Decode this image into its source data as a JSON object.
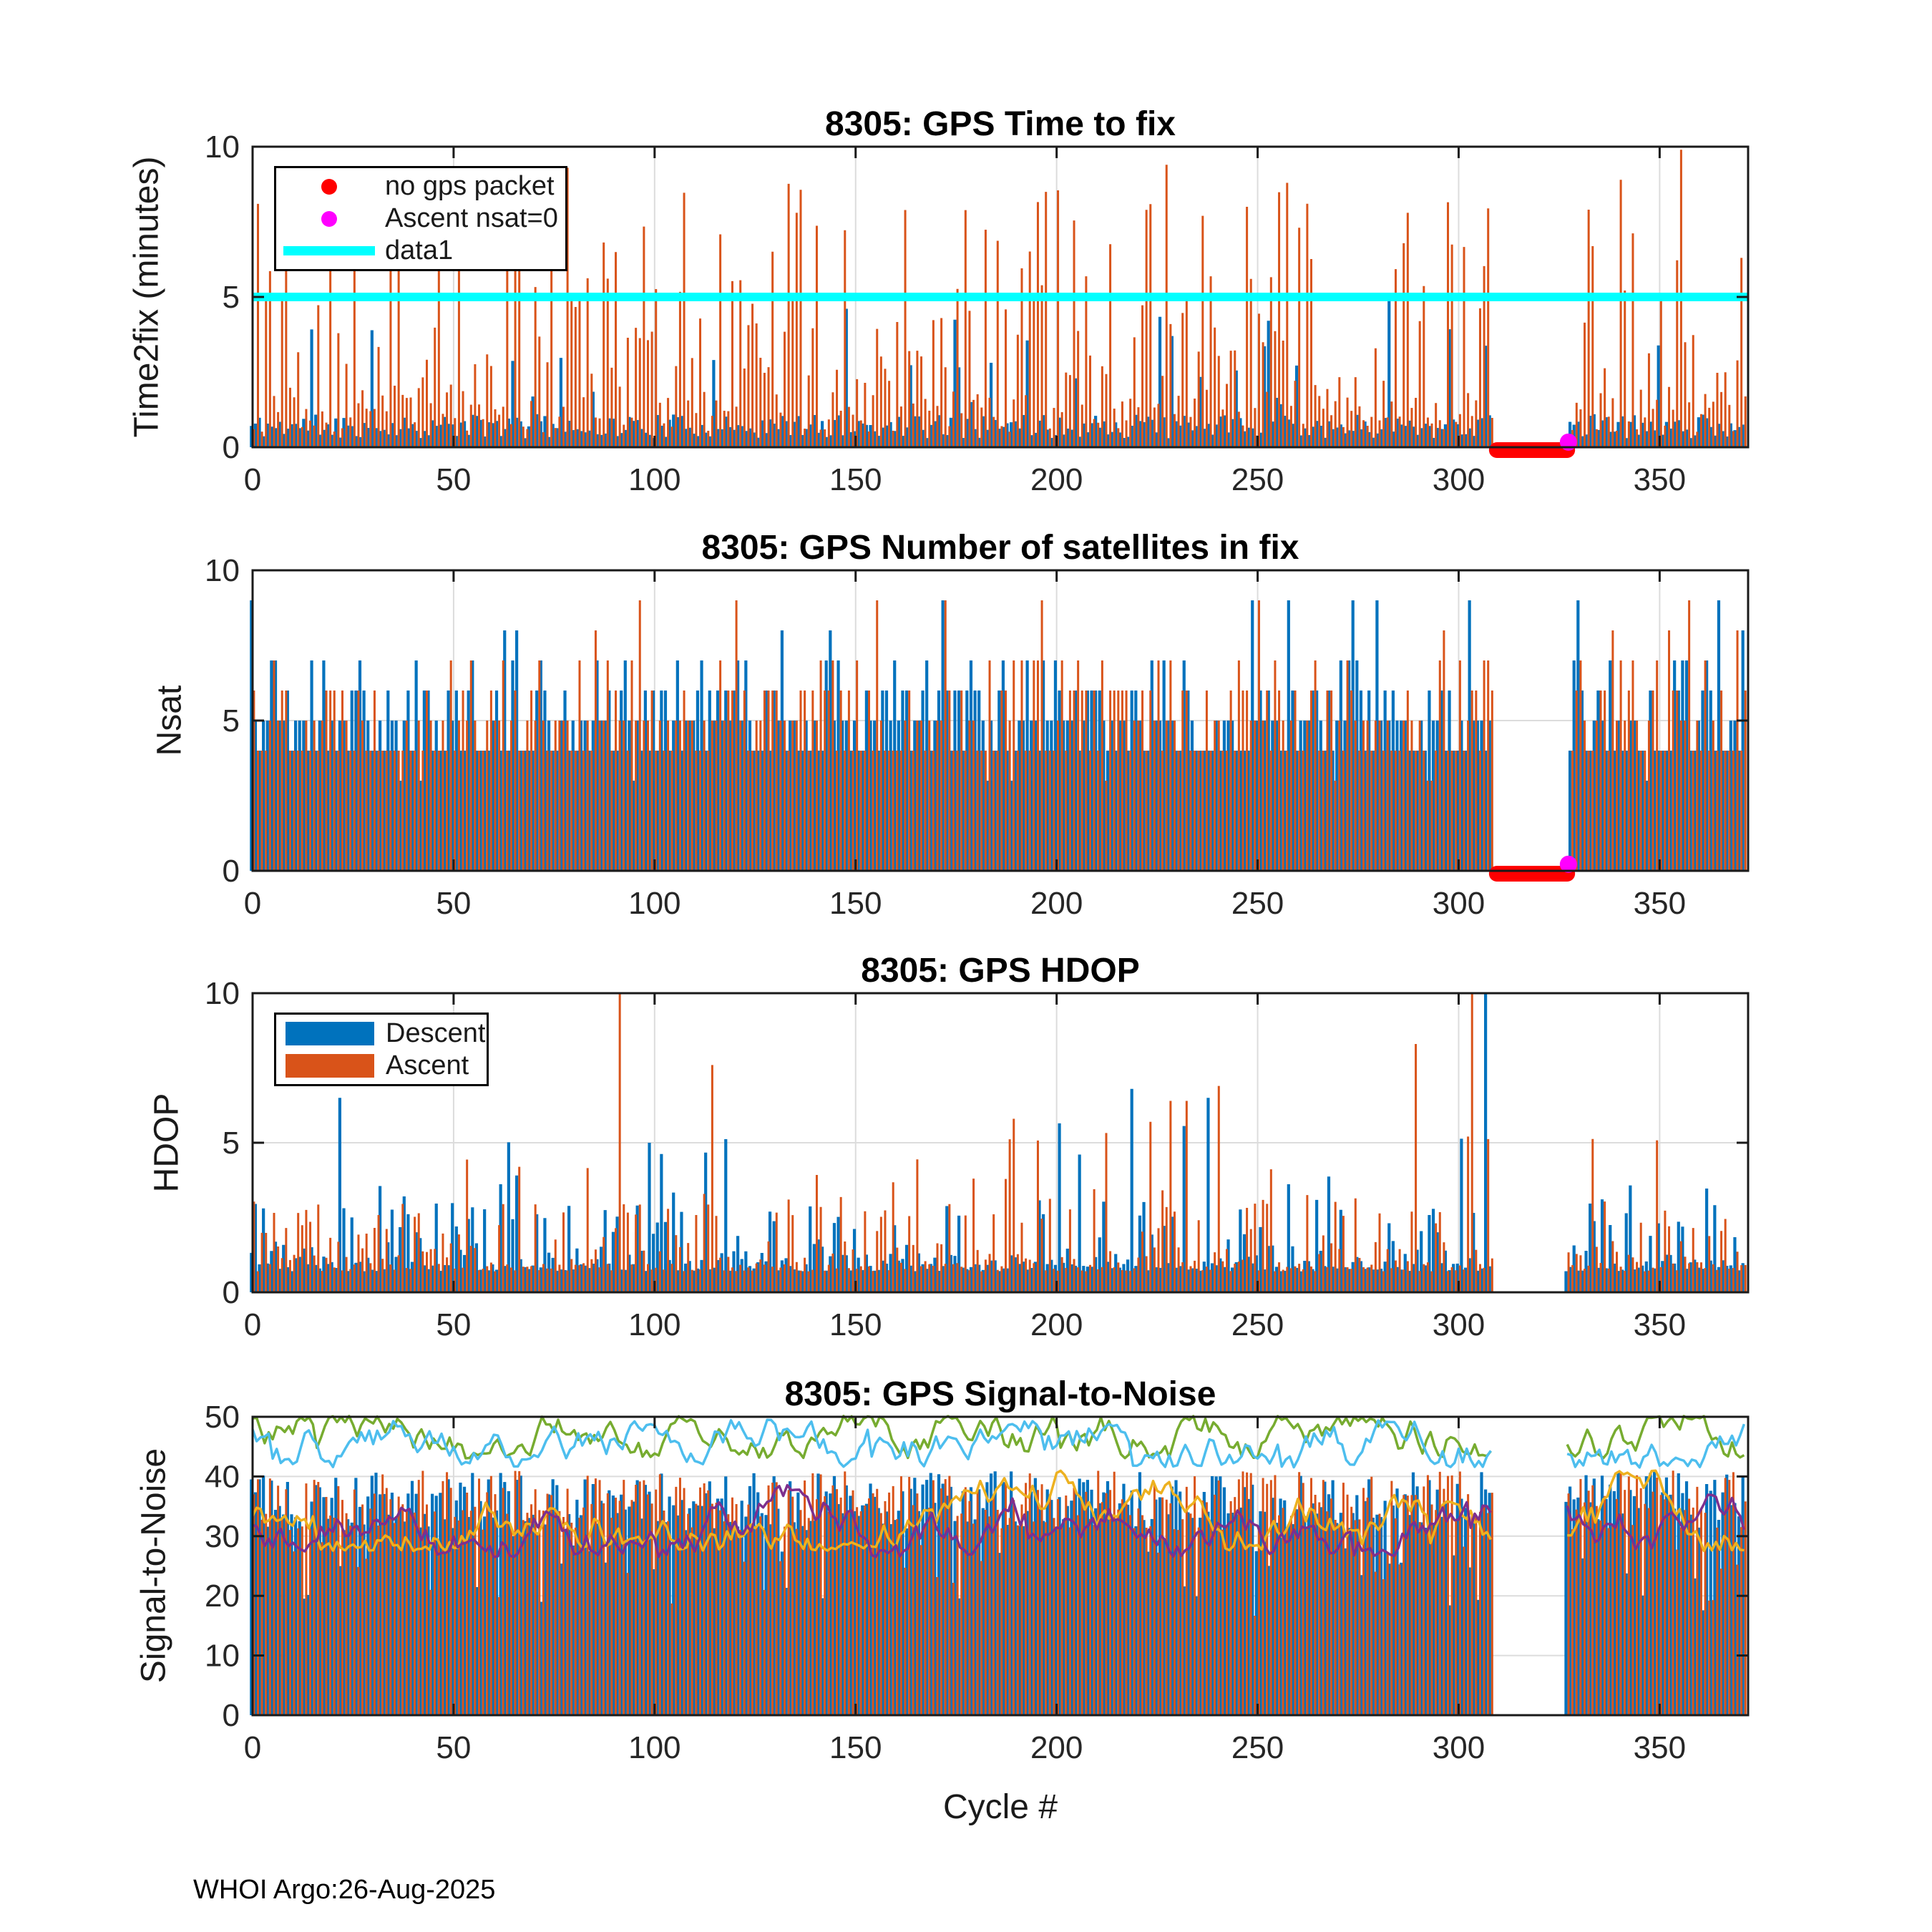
{
  "figure": {
    "footer": "WHOI Argo:26-Aug-2025",
    "xlabel": "Cycle #",
    "background": "#ffffff",
    "axis_color": "#1a1a1a",
    "grid_color": "#dcdcdc"
  },
  "chart_data": [
    {
      "id": "time-to-fix",
      "type": "stem",
      "title": "8305: GPS Time to fix",
      "ylabel": "Time2fix (minutes)",
      "ylim": [
        0,
        10
      ],
      "yticks": [
        0,
        5,
        10
      ],
      "xlim": [
        0,
        372
      ],
      "xticks": [
        0,
        50,
        100,
        150,
        200,
        250,
        300,
        350
      ],
      "grid_y": [
        5
      ],
      "legend": {
        "position": "northwest",
        "entries": [
          {
            "label": "no gps packet",
            "marker": "dot",
            "color": "#FF0000"
          },
          {
            "label": "Ascent nsat=0",
            "marker": "dot",
            "color": "#FF00FF"
          },
          {
            "label": "data1",
            "marker": "line",
            "color": "#00FFFF"
          }
        ]
      },
      "reference_line": {
        "y": 5,
        "color": "#00FFFF",
        "width": 12
      },
      "gap": {
        "start": 309,
        "end": 327
      },
      "no_gps_segment": {
        "from": 309.5,
        "to": 327,
        "y": 0,
        "color": "#FF0000",
        "width": 22
      },
      "ascent_nsat0_point": {
        "cycle": 327.3,
        "y": 0.17,
        "color": "#FF00FF",
        "radius": 12
      },
      "series": [
        {
          "name": "Descent",
          "color": "#0072BD",
          "gen": {
            "kind": "ttf-descent",
            "seed": 11
          }
        },
        {
          "name": "Ascent",
          "color": "#D95319",
          "gen": {
            "kind": "ttf-ascent",
            "seed": 12
          }
        }
      ],
      "spikes": [
        {
          "s": 1,
          "c": 78,
          "v": 9.3
        },
        {
          "s": 1,
          "c": 135,
          "v": 7.8
        },
        {
          "s": 1,
          "c": 222,
          "v": 7.9
        },
        {
          "s": 1,
          "c": 227,
          "v": 9.4
        },
        {
          "s": 1,
          "c": 247,
          "v": 8.0
        },
        {
          "s": 1,
          "c": 262,
          "v": 8.1
        },
        {
          "s": 1,
          "c": 287,
          "v": 7.8
        },
        {
          "s": 0,
          "c": 283,
          "v": 4.9
        },
        {
          "s": 1,
          "c": 340,
          "v": 8.9
        },
        {
          "s": 1,
          "c": 355,
          "v": 9.9
        },
        {
          "s": 1,
          "c": 370,
          "v": 6.3
        }
      ]
    },
    {
      "id": "nsat",
      "type": "stem",
      "title": "8305: GPS Number of satellites in fix",
      "ylabel": "Nsat",
      "ylim": [
        0,
        10
      ],
      "yticks": [
        0,
        5,
        10
      ],
      "xlim": [
        0,
        372
      ],
      "xticks": [
        0,
        50,
        100,
        150,
        200,
        250,
        300,
        350
      ],
      "grid_y": [
        5
      ],
      "gap": {
        "start": 309,
        "end": 327
      },
      "no_gps_segment": {
        "from": 309.5,
        "to": 327,
        "y": 0,
        "color": "#FF0000",
        "width": 22
      },
      "ascent_nsat0_point": {
        "cycle": 327.3,
        "y": 0.22,
        "color": "#FF00FF",
        "radius": 12
      },
      "series": [
        {
          "name": "Descent",
          "color": "#0072BD",
          "gen": {
            "kind": "nsat",
            "seed": 21
          }
        },
        {
          "name": "Ascent",
          "color": "#D95319",
          "gen": {
            "kind": "nsat",
            "seed": 22
          }
        }
      ],
      "spikes": [
        {
          "s": 0,
          "c": 0,
          "v": 9
        },
        {
          "s": 0,
          "c": 172,
          "v": 9
        },
        {
          "s": 1,
          "c": 172,
          "v": 9
        },
        {
          "s": 1,
          "c": 250,
          "v": 9
        },
        {
          "s": 0,
          "c": 258,
          "v": 9
        },
        {
          "s": 0,
          "c": 280,
          "v": 9
        },
        {
          "s": 0,
          "c": 330,
          "v": 9
        },
        {
          "s": 1,
          "c": 352,
          "v": 8
        },
        {
          "s": 0,
          "c": 365,
          "v": 9
        }
      ]
    },
    {
      "id": "hdop",
      "type": "stem",
      "title": "8305: GPS HDOP",
      "ylabel": "HDOP",
      "ylim": [
        0,
        10
      ],
      "yticks": [
        0,
        5,
        10
      ],
      "xlim": [
        0,
        372
      ],
      "xticks": [
        0,
        50,
        100,
        150,
        200,
        250,
        300,
        350
      ],
      "grid_y": [
        5
      ],
      "legend": {
        "position": "northwest",
        "entries": [
          {
            "label": "Descent",
            "marker": "patch",
            "color": "#0072BD"
          },
          {
            "label": "Ascent",
            "marker": "patch",
            "color": "#D95319"
          }
        ]
      },
      "gap": {
        "start": 309,
        "end": 326
      },
      "series": [
        {
          "name": "Descent",
          "color": "#0072BD",
          "gen": {
            "kind": "hdop",
            "seed": 31
          }
        },
        {
          "name": "Ascent",
          "color": "#D95319",
          "gen": {
            "kind": "hdop",
            "seed": 32
          }
        }
      ],
      "spikes": [
        {
          "s": 1,
          "c": 91,
          "v": 10
        },
        {
          "s": 1,
          "c": 114,
          "v": 7.6
        },
        {
          "s": 0,
          "c": 22,
          "v": 6.5
        },
        {
          "s": 0,
          "c": 99,
          "v": 5.0
        },
        {
          "s": 1,
          "c": 189,
          "v": 5.8
        },
        {
          "s": 0,
          "c": 219,
          "v": 6.8
        },
        {
          "s": 1,
          "c": 223,
          "v": 5.7
        },
        {
          "s": 1,
          "c": 228,
          "v": 6.4
        },
        {
          "s": 1,
          "c": 232,
          "v": 6.4
        },
        {
          "s": 0,
          "c": 238,
          "v": 6.5
        },
        {
          "s": 1,
          "c": 240,
          "v": 6.9
        },
        {
          "s": 1,
          "c": 289,
          "v": 8.3
        },
        {
          "s": 1,
          "c": 303,
          "v": 10
        },
        {
          "s": 0,
          "c": 307,
          "v": 10
        }
      ]
    },
    {
      "id": "signal-to-noise",
      "type": "stem+line",
      "title": "8305: GPS Signal-to-Noise",
      "ylabel": "Signal-to-Noise",
      "xlabel": "Cycle #",
      "ylim": [
        0,
        50
      ],
      "yticks": [
        0,
        10,
        20,
        30,
        40,
        50
      ],
      "xlim": [
        0,
        372
      ],
      "xticks": [
        0,
        50,
        100,
        150,
        200,
        250,
        300,
        350
      ],
      "grid_y": [
        10,
        20,
        30,
        40
      ],
      "gap": {
        "start": 309,
        "end": 326
      },
      "series": [
        {
          "name": "Descent",
          "color": "#0072BD",
          "gen": {
            "kind": "snrbar",
            "seed": 41
          }
        },
        {
          "name": "Ascent",
          "color": "#D95319",
          "gen": {
            "kind": "snrbar",
            "seed": 42
          }
        }
      ],
      "lines": [
        {
          "name": "snr-line-yellow",
          "color": "#EDB120",
          "gen": {
            "kind": "walk",
            "seed": 45,
            "lo": 27.5,
            "hi": 41
          }
        },
        {
          "name": "snr-line-purple",
          "color": "#7E2F8E",
          "gen": {
            "kind": "walk",
            "seed": 46,
            "lo": 26.5,
            "hi": 39
          }
        },
        {
          "name": "snr-line-green",
          "color": "#77AC30",
          "gen": {
            "kind": "walk",
            "seed": 43,
            "lo": 43,
            "hi": 50.2
          }
        },
        {
          "name": "snr-line-skyblue",
          "color": "#4DBEEE",
          "gen": {
            "kind": "walk",
            "seed": 44,
            "lo": 41.5,
            "hi": 49.5
          }
        }
      ]
    }
  ]
}
